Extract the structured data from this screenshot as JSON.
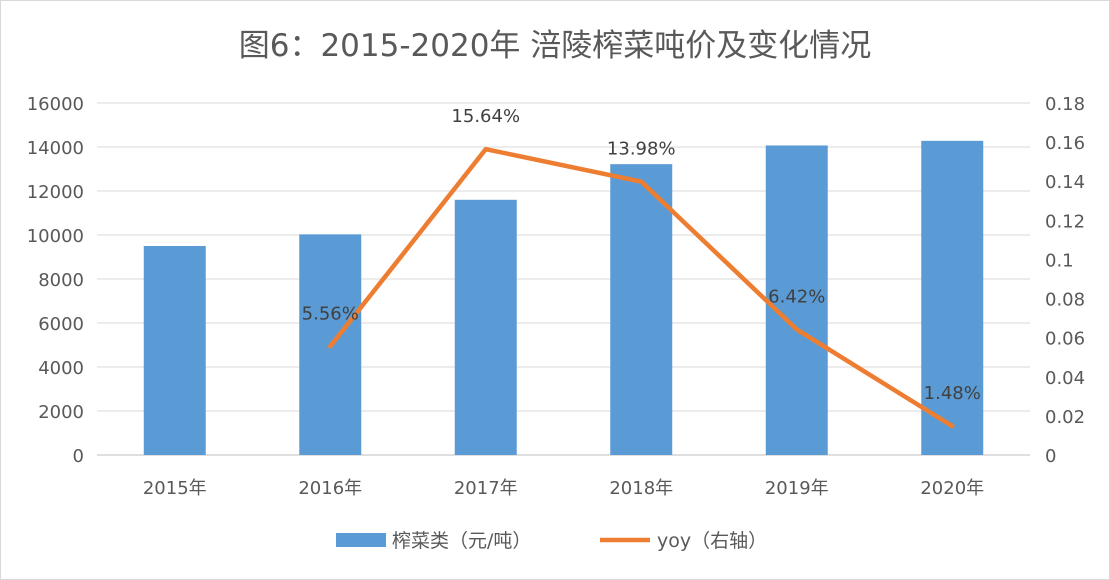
{
  "chart_data": {
    "type": "bar+line",
    "title": "图6：2015-2020年 涪陵榨菜吨价及变化情况",
    "categories": [
      "2015年",
      "2016年",
      "2017年",
      "2018年",
      "2019年",
      "2020年"
    ],
    "series": [
      {
        "name": "榨菜类（元/吨）",
        "type": "bar",
        "axis": "left",
        "color": "#5b9bd5",
        "values": [
          9500,
          10030,
          11600,
          13220,
          14070,
          14280
        ]
      },
      {
        "name": "yoy（右轴）",
        "type": "line",
        "axis": "right",
        "color": "#ed7d31",
        "values": [
          null,
          0.0556,
          0.1564,
          0.1398,
          0.0642,
          0.0148
        ],
        "data_labels": [
          "",
          "5.56%",
          "15.64%",
          "13.98%",
          "6.42%",
          "1.48%"
        ]
      }
    ],
    "left_axis": {
      "ylim": [
        0,
        16000
      ],
      "ticks": [
        "0",
        "2000",
        "4000",
        "6000",
        "8000",
        "10000",
        "12000",
        "14000",
        "16000"
      ]
    },
    "right_axis": {
      "ylim": [
        0,
        0.18
      ],
      "ticks": [
        "0",
        "0.02",
        "0.04",
        "0.06",
        "0.08",
        "0.1",
        "0.12",
        "0.14",
        "0.16",
        "0.18"
      ]
    },
    "grid": true,
    "legend_position": "bottom"
  }
}
